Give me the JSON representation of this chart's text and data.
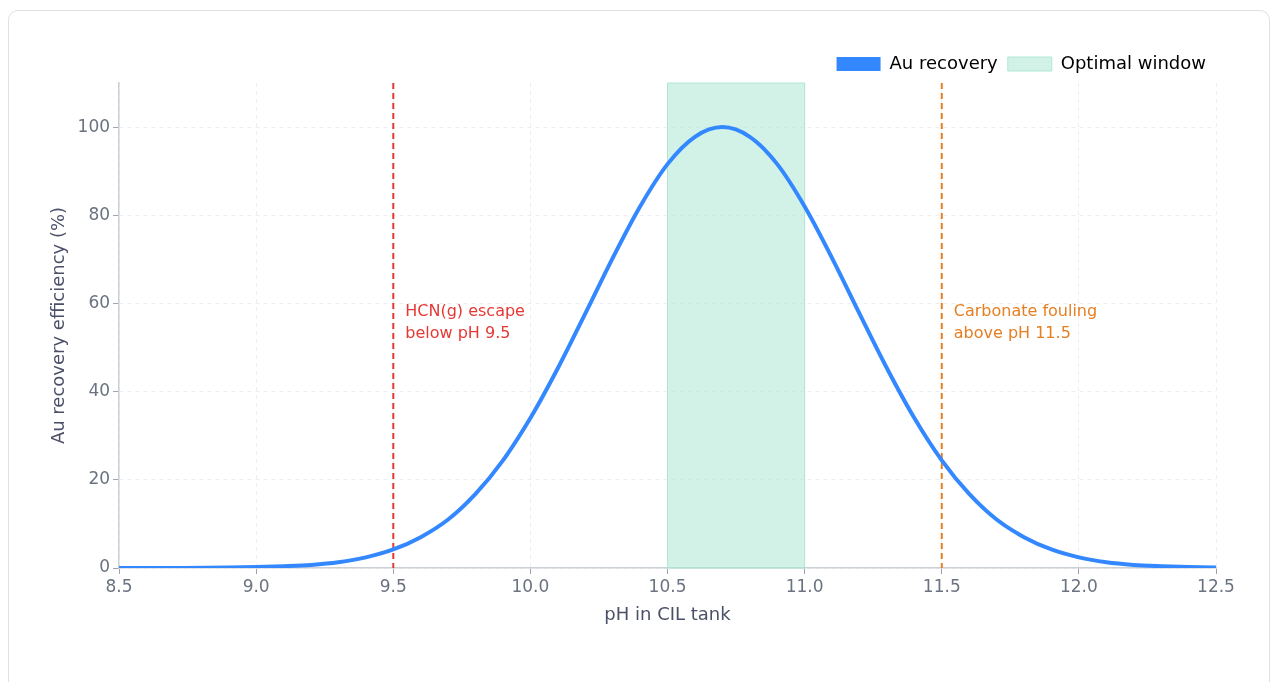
{
  "chart_data": {
    "type": "line",
    "xlabel": "pH in CIL tank",
    "ylabel": "Au recovery efficiency (%)",
    "xlim": [
      8.5,
      12.5
    ],
    "xticks": [
      8.5,
      {
        "value": 9,
        "label": "9.0"
      },
      9.5,
      {
        "value": 10,
        "label": "10.0"
      },
      10.5,
      {
        "value": 11,
        "label": "11.0"
      },
      11.5,
      {
        "value": 12,
        "label": "12.0"
      },
      12.5
    ],
    "ylim": [
      0,
      110
    ],
    "yticks": [
      0,
      20,
      40,
      60,
      80,
      100
    ],
    "grid": true,
    "legend": "top right",
    "marker": "none",
    "line_style": "solid",
    "series": [
      {
        "name": "Au recovery",
        "color": "#3388ff",
        "x": [
          8.5,
          8.7,
          8.9,
          9.0,
          9.1,
          9.2,
          9.3,
          9.4,
          9.5,
          9.6,
          9.7,
          9.8,
          9.9,
          10.0,
          10.1,
          10.2,
          10.3,
          10.4,
          10.5,
          10.6,
          10.7,
          10.8,
          10.9,
          11.0,
          11.1,
          11.2,
          11.3,
          11.4,
          11.5,
          11.6,
          11.7,
          11.8,
          11.9,
          12.0,
          12.1,
          12.2,
          12.3,
          12.4,
          12.5
        ],
        "values": [
          0,
          0,
          0.1,
          0.2,
          0.4,
          0.7,
          1.3,
          2.4,
          4.2,
          7,
          11,
          16.8,
          24.4,
          34,
          45.3,
          57.7,
          70.3,
          82,
          91.6,
          97.8,
          100,
          97.8,
          91.6,
          82,
          70.3,
          57.7,
          45.3,
          34,
          24.4,
          16.8,
          11,
          7,
          4.2,
          2.4,
          1.3,
          0.7,
          0.4,
          0.2,
          0.1
        ]
      }
    ],
    "bands": [
      {
        "axis": "x",
        "from": 10.5,
        "to": 11.0,
        "label": "Optimal window",
        "color": "#a8e6cf"
      }
    ],
    "ref_lines": [
      {
        "axis": "x",
        "value": 9.5,
        "label": "HCN(g) escape\nbelow pH 9.5",
        "color": "#e53935",
        "line_style": "dashed"
      },
      {
        "axis": "x",
        "value": 11.5,
        "label": "Carbonate fouling\nabove pH 11.5",
        "color": "#e67e22",
        "line_style": "dashed"
      }
    ]
  }
}
